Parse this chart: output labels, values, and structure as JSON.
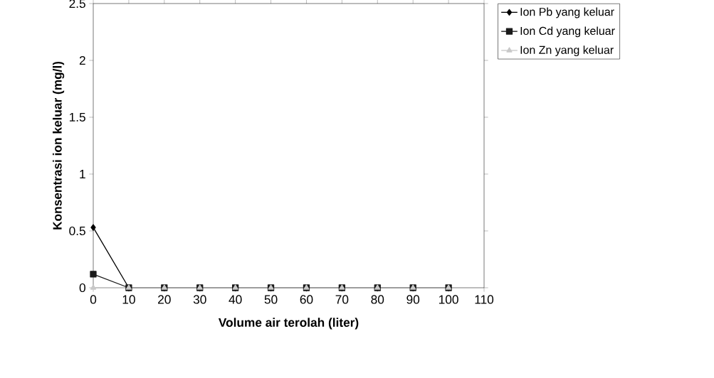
{
  "chart_data": {
    "type": "line",
    "xlabel": "Volume air terolah (liter)",
    "ylabel": "Konsentrasi ion keluar (mg/l)",
    "x": [
      0,
      10,
      20,
      30,
      40,
      50,
      60,
      70,
      80,
      90,
      100
    ],
    "xlim": [
      0,
      110
    ],
    "xticks": [
      0,
      10,
      20,
      30,
      40,
      50,
      60,
      70,
      80,
      90,
      100,
      110
    ],
    "ylim": [
      0,
      2.5
    ],
    "yticks": [
      0,
      0.5,
      1,
      1.5,
      2,
      2.5
    ],
    "grid": false,
    "legend": "top right",
    "line_style": "solid",
    "series": [
      {
        "name": "Ion Pb yang keluar",
        "color": "#000000",
        "marker": "diamond",
        "values": [
          0.53,
          0,
          0,
          0,
          0,
          0,
          0,
          0,
          0,
          0,
          0
        ]
      },
      {
        "name": "Ion Cd yang keluar",
        "color": "#1a1a1a",
        "marker": "square",
        "values": [
          0.12,
          0,
          0,
          0,
          0,
          0,
          0,
          0,
          0,
          0,
          0
        ]
      },
      {
        "name": "Ion Zn yang keluar",
        "color": "#c8c8c8",
        "marker": "triangle",
        "values": [
          0,
          0,
          0,
          0,
          0,
          0,
          0,
          0,
          0,
          0,
          0
        ]
      }
    ]
  }
}
